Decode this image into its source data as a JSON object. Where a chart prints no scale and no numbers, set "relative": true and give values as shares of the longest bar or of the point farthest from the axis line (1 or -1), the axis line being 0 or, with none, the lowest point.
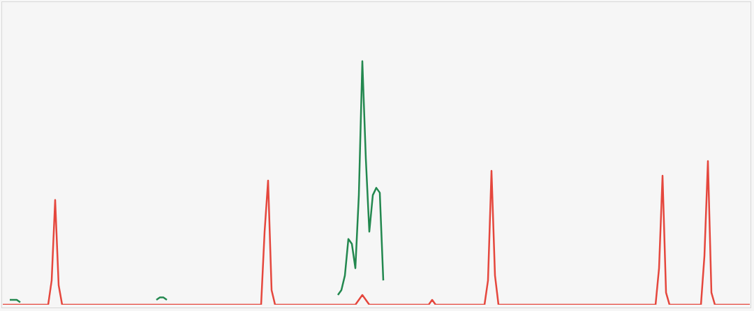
{
  "chart_data": {
    "type": "line",
    "relative": true,
    "legend": false,
    "marker": "none",
    "line_style": "solid",
    "categories": [
      null,
      null,
      null,
      null,
      null,
      null,
      null,
      null,
      null,
      null,
      null,
      null,
      null,
      null,
      null,
      null,
      null,
      null,
      null,
      null,
      null,
      null,
      null,
      null,
      null,
      null,
      null,
      null,
      null,
      null,
      null,
      null,
      null,
      null,
      null,
      null,
      null,
      null,
      null,
      null,
      null,
      null,
      null,
      null,
      null,
      null,
      null,
      null,
      null,
      null,
      null,
      null,
      null,
      null,
      null,
      null,
      null,
      null,
      null,
      null,
      null,
      null,
      null,
      null,
      null,
      null,
      null,
      null,
      null,
      null,
      null,
      null,
      null,
      null,
      null,
      null,
      null,
      null,
      null,
      null,
      null,
      null,
      null,
      null,
      null,
      null,
      null,
      null,
      null,
      null,
      null,
      null,
      null,
      null,
      null,
      null,
      null,
      null,
      null,
      null,
      null,
      null,
      null,
      null,
      null,
      null,
      null,
      null,
      null,
      null,
      null,
      null,
      null,
      null,
      null,
      null,
      null,
      null,
      null,
      null,
      null,
      null,
      null,
      null,
      null,
      null,
      null,
      null,
      null,
      null,
      null,
      null,
      null,
      null,
      null,
      null,
      null,
      null,
      null,
      null,
      null,
      null,
      null,
      null,
      null,
      null,
      null,
      null,
      null,
      null,
      null,
      null,
      null,
      null,
      null,
      null,
      null,
      null,
      null,
      null,
      null,
      null,
      null,
      null,
      null,
      null,
      null,
      null,
      null,
      null,
      null,
      null,
      null,
      null,
      null,
      null,
      null,
      null,
      null,
      null,
      null,
      null,
      null,
      null,
      null,
      null,
      null,
      null,
      null,
      null,
      null,
      null,
      null,
      null,
      null,
      null,
      null,
      null,
      null,
      null,
      null,
      null,
      null,
      null,
      null,
      null,
      null,
      null,
      null,
      null,
      null,
      null,
      null,
      null,
      null
    ],
    "series": [
      {
        "color": "#e5473d",
        "values": [
          0,
          0,
          0,
          0,
          0,
          0,
          0,
          0,
          0,
          0,
          0,
          0,
          0,
          0,
          0.1,
          0.43,
          0.08,
          0,
          0,
          0,
          0,
          0,
          0,
          0,
          0,
          0,
          0,
          0,
          0,
          0,
          0,
          0,
          0,
          0,
          0,
          0,
          0,
          0,
          0,
          0,
          0,
          0,
          0,
          0,
          0,
          0,
          0,
          0,
          0,
          0,
          0,
          0,
          0,
          0,
          0,
          0,
          0,
          0,
          0,
          0,
          0,
          0,
          0,
          0,
          0,
          0,
          0,
          0,
          0,
          0,
          0,
          0,
          0,
          0,
          0,
          0.3,
          0.51,
          0.06,
          0,
          0,
          0,
          0,
          0,
          0,
          0,
          0,
          0,
          0,
          0,
          0,
          0,
          0,
          0,
          0,
          0,
          0,
          0,
          0,
          0,
          0,
          0,
          0,
          0.02,
          0.04,
          0.02,
          0,
          0,
          0,
          0,
          0,
          0,
          0,
          0,
          0,
          0,
          0,
          0,
          0,
          0,
          0,
          0,
          0,
          0,
          0.02,
          0,
          0,
          0,
          0,
          0,
          0,
          0,
          0,
          0,
          0,
          0,
          0,
          0,
          0,
          0,
          0.1,
          0.55,
          0.12,
          0,
          0,
          0,
          0,
          0,
          0,
          0,
          0,
          0,
          0,
          0,
          0,
          0,
          0,
          0,
          0,
          0,
          0,
          0,
          0,
          0,
          0,
          0,
          0,
          0,
          0,
          0,
          0,
          0,
          0,
          0,
          0,
          0,
          0,
          0,
          0,
          0,
          0,
          0,
          0,
          0,
          0,
          0,
          0,
          0,
          0,
          0.15,
          0.53,
          0.05,
          0,
          0,
          0,
          0,
          0,
          0,
          0,
          0,
          0,
          0,
          0.2,
          0.59,
          0.05,
          0,
          0,
          0,
          0,
          0,
          0,
          0,
          0,
          0,
          0,
          0
        ]
      },
      {
        "color": "#23884f",
        "values": [
          null,
          null,
          0.02,
          0.02,
          0.02,
          0.01,
          null,
          null,
          null,
          null,
          null,
          null,
          null,
          null,
          null,
          null,
          null,
          null,
          null,
          null,
          null,
          null,
          null,
          null,
          null,
          null,
          null,
          null,
          null,
          null,
          null,
          null,
          null,
          null,
          null,
          null,
          null,
          null,
          null,
          null,
          null,
          null,
          null,
          null,
          0.02,
          0.03,
          0.03,
          0.02,
          null,
          null,
          null,
          null,
          null,
          null,
          null,
          null,
          null,
          null,
          null,
          null,
          null,
          null,
          null,
          null,
          null,
          null,
          null,
          null,
          null,
          null,
          null,
          null,
          null,
          null,
          null,
          null,
          null,
          null,
          null,
          null,
          null,
          null,
          null,
          null,
          null,
          null,
          null,
          null,
          null,
          null,
          null,
          null,
          null,
          null,
          null,
          null,
          0.04,
          0.06,
          0.12,
          0.27,
          0.25,
          0.15,
          0.45,
          1,
          0.6,
          0.3,
          0.45,
          0.48,
          0.46,
          0.1,
          null,
          null,
          null,
          null,
          null,
          null,
          null,
          null,
          null,
          null,
          null,
          null,
          null,
          null,
          null,
          null,
          null,
          null,
          null,
          null,
          null,
          null,
          null,
          null,
          null,
          null,
          null,
          null,
          null,
          null,
          null,
          null,
          null,
          null,
          null,
          null,
          null,
          null,
          null,
          null,
          null,
          null,
          null,
          null,
          null,
          null,
          null,
          null,
          null,
          null,
          null,
          null,
          null,
          null,
          null,
          null,
          null,
          null,
          null,
          null,
          null,
          null,
          null,
          null,
          null,
          null,
          null,
          null,
          null,
          null,
          null,
          null,
          null,
          null,
          null,
          null,
          null,
          null,
          null,
          null,
          null,
          null,
          null,
          null,
          null,
          null,
          null,
          null,
          null,
          null,
          null,
          null,
          null,
          null,
          null,
          null,
          null,
          null,
          null,
          null,
          null,
          null,
          null,
          null,
          null
        ]
      }
    ]
  }
}
